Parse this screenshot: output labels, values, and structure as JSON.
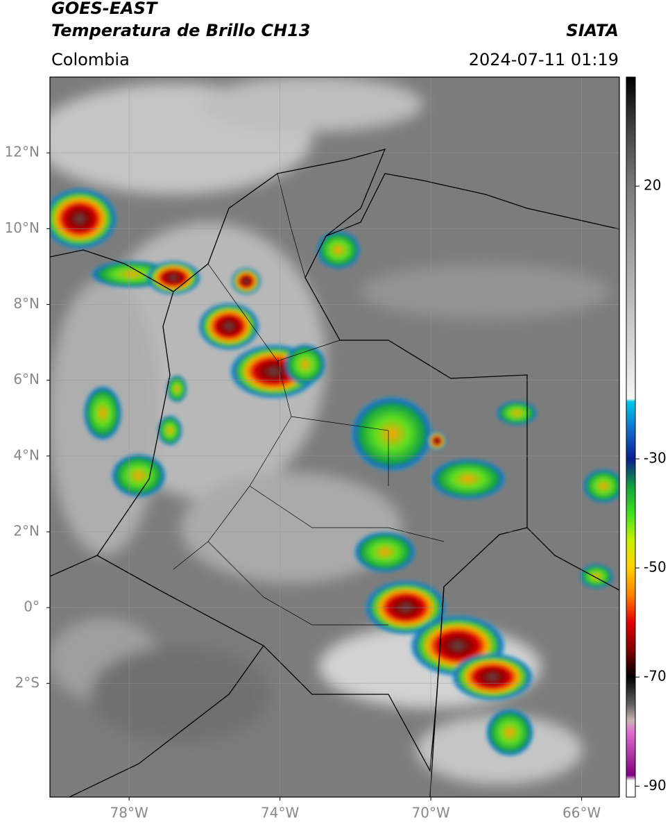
{
  "header": {
    "title": "GOES-EAST",
    "subtitle": "Temperatura de Brillo CH13",
    "source": "SIATA",
    "region": "Colombia",
    "datetime": "2024-07-11 01:19"
  },
  "map": {
    "xlim": [
      -80.1,
      -65
    ],
    "ylim": [
      -5,
      14
    ],
    "xticks": [
      {
        "value": -78,
        "label": "78°W"
      },
      {
        "value": -74,
        "label": "74°W"
      },
      {
        "value": -70,
        "label": "70°W"
      },
      {
        "value": -66,
        "label": "66°W"
      }
    ],
    "yticks": [
      {
        "value": 12,
        "label": "12°N"
      },
      {
        "value": 10,
        "label": "10°N"
      },
      {
        "value": 8,
        "label": "8°N"
      },
      {
        "value": 6,
        "label": "6°N"
      },
      {
        "value": 4,
        "label": "4°N"
      },
      {
        "value": 2,
        "label": "2°N"
      },
      {
        "value": 0,
        "label": "0°"
      },
      {
        "value": -2,
        "label": "2°S"
      }
    ],
    "grid": true
  },
  "colorbar": {
    "lim": [
      -92,
      40
    ],
    "ticks": [
      20,
      -30,
      -50,
      -70,
      -90
    ],
    "stops": [
      [
        40,
        "#000000"
      ],
      [
        30,
        "#454545"
      ],
      [
        20,
        "#7a7a7a"
      ],
      [
        -19,
        "#f6f6f6"
      ],
      [
        -19.5,
        "#00c8e8"
      ],
      [
        -25,
        "#1466c8"
      ],
      [
        -30,
        "#0a1e8c"
      ],
      [
        -35,
        "#12a040"
      ],
      [
        -40,
        "#40e020"
      ],
      [
        -45,
        "#c8f000"
      ],
      [
        -50,
        "#ffd000"
      ],
      [
        -55,
        "#ff8000"
      ],
      [
        -60,
        "#e00000"
      ],
      [
        -65,
        "#800000"
      ],
      [
        -70,
        "#000000"
      ],
      [
        -75,
        "#606060"
      ],
      [
        -78,
        "#c8b4b4"
      ],
      [
        -80,
        "#e070d0"
      ],
      [
        -88,
        "#800080"
      ],
      [
        -89,
        "#ffffff"
      ],
      [
        -92,
        "#ffffff"
      ]
    ]
  }
}
